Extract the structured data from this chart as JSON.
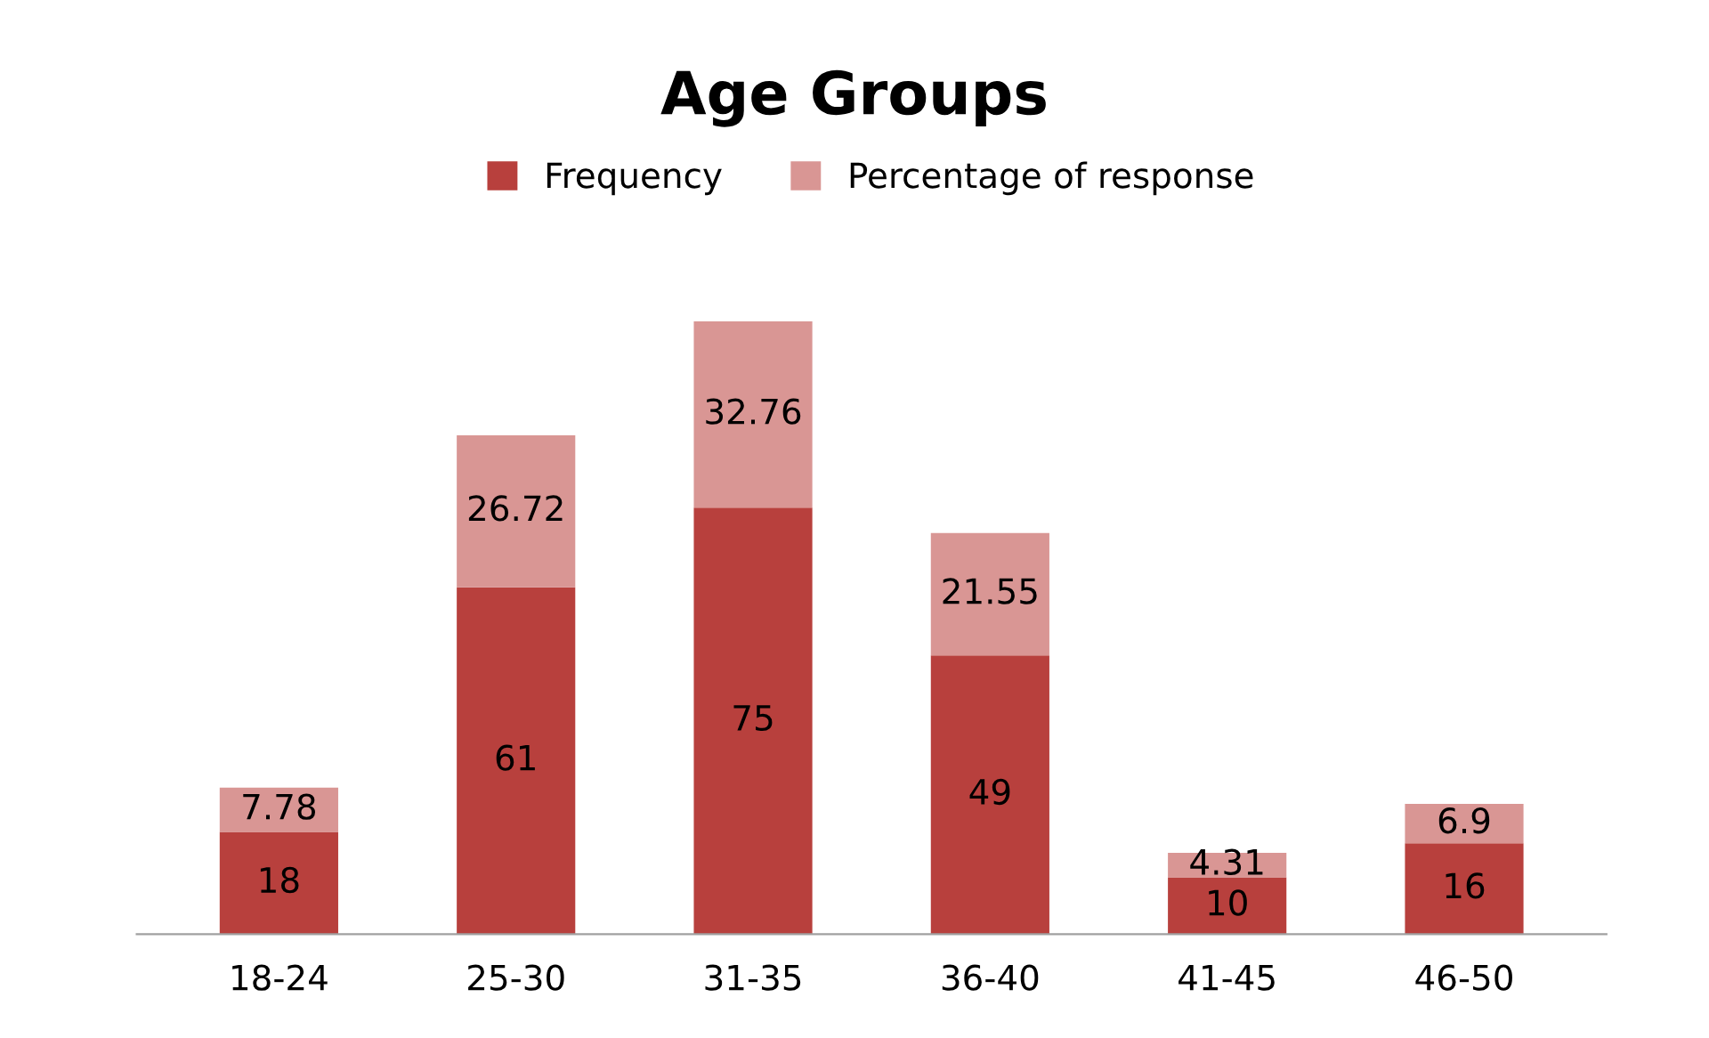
{
  "chart_data": {
    "type": "bar",
    "title": "Age Groups",
    "categories": [
      "18-24",
      "25-30",
      "31-35",
      "36-40",
      "41-45",
      "46-50"
    ],
    "stacked": true,
    "data_labels": true,
    "legend": "top",
    "grid": false,
    "series": [
      {
        "name": "Frequency",
        "color": "#b8403d",
        "values": [
          18,
          61,
          75,
          49,
          10,
          16
        ]
      },
      {
        "name": "Percentage of response",
        "color": "#d99694",
        "values": [
          7.78,
          26.72,
          32.76,
          21.55,
          4.31,
          6.9
        ]
      }
    ]
  }
}
